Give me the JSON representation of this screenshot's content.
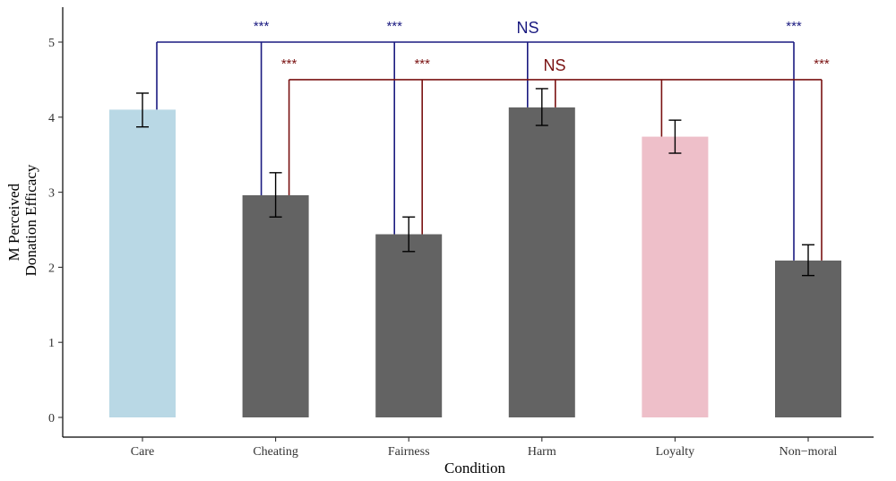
{
  "chart_data": {
    "type": "bar",
    "xlabel": "Condition",
    "ylabel_lines": [
      "M Perceived",
      "Donation Efficacy"
    ],
    "ylim": [
      0,
      5.5
    ],
    "yticks": [
      0,
      1,
      2,
      3,
      4,
      5
    ],
    "categories": [
      "Care",
      "Cheating",
      "Fairness",
      "Harm",
      "Loyalty",
      "Non−moral"
    ],
    "values": [
      4.1,
      2.96,
      2.44,
      4.13,
      3.74,
      2.09
    ],
    "error_low": [
      3.87,
      2.67,
      2.21,
      3.89,
      3.52,
      1.89
    ],
    "error_high": [
      4.32,
      3.26,
      2.67,
      4.38,
      3.96,
      2.3
    ],
    "bar_colors": [
      "#b9d8e5",
      "#636363",
      "#636363",
      "#636363",
      "#eebfc9",
      "#636363"
    ],
    "grid": false,
    "comparisons": [
      {
        "reference": "Care",
        "color": "#1a1a80",
        "bracket_y": 5.0,
        "targets": [
          {
            "category": "Cheating",
            "label": "***"
          },
          {
            "category": "Fairness",
            "label": "***"
          },
          {
            "category": "Harm",
            "label": "NS"
          },
          {
            "category": "Non−moral",
            "label": "***"
          }
        ]
      },
      {
        "reference": "Loyalty",
        "color": "#7a1212",
        "bracket_y": 4.5,
        "targets": [
          {
            "category": "Cheating",
            "label": "***"
          },
          {
            "category": "Fairness",
            "label": "***"
          },
          {
            "category": "Harm",
            "label": "NS"
          },
          {
            "category": "Non−moral",
            "label": "***"
          }
        ]
      }
    ]
  }
}
